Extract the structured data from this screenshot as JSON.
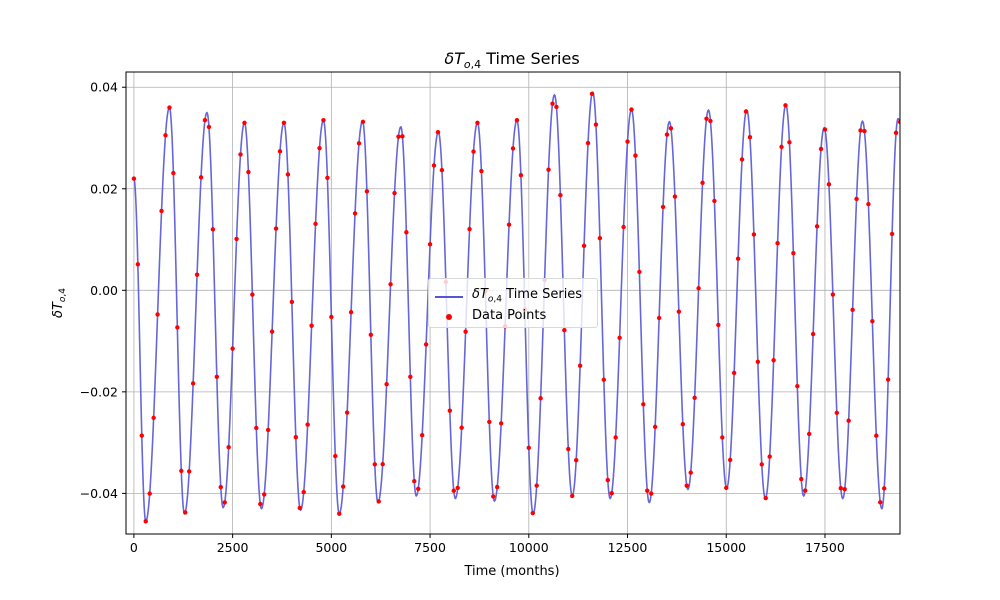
{
  "chart_data": {
    "type": "line",
    "title": "δT_{o,4} Time Series",
    "xlabel": "Time (months)",
    "ylabel": "δT_{o,4}",
    "xlim": [
      -200,
      19400
    ],
    "ylim": [
      -0.048,
      0.043
    ],
    "xticks": [
      0,
      2500,
      5000,
      7500,
      10000,
      12500,
      15000,
      17500
    ],
    "xtick_labels": [
      "0",
      "2500",
      "5000",
      "7500",
      "10000",
      "12500",
      "15000",
      "17500"
    ],
    "yticks": [
      -0.04,
      -0.02,
      0.0,
      0.02,
      0.04
    ],
    "ytick_labels": [
      "−0.04",
      "−0.02",
      "0.00",
      "0.02",
      "0.04"
    ],
    "grid": true,
    "legend_position": "center",
    "period_months": 985,
    "sample_step_months": 100,
    "peaks": [
      {
        "x": 900,
        "y": 0.036
      },
      {
        "x": 1850,
        "y": 0.035
      },
      {
        "x": 2800,
        "y": 0.033
      },
      {
        "x": 3800,
        "y": 0.033
      },
      {
        "x": 4800,
        "y": 0.0335
      },
      {
        "x": 5790,
        "y": 0.0333
      },
      {
        "x": 6760,
        "y": 0.0322
      },
      {
        "x": 7710,
        "y": 0.0312
      },
      {
        "x": 8700,
        "y": 0.033
      },
      {
        "x": 9700,
        "y": 0.0335
      },
      {
        "x": 10650,
        "y": 0.0385
      },
      {
        "x": 11620,
        "y": 0.039
      },
      {
        "x": 12600,
        "y": 0.0356
      },
      {
        "x": 13560,
        "y": 0.0332
      },
      {
        "x": 14550,
        "y": 0.0355
      },
      {
        "x": 15520,
        "y": 0.0355
      },
      {
        "x": 16510,
        "y": 0.0365
      },
      {
        "x": 17480,
        "y": 0.032
      },
      {
        "x": 18450,
        "y": 0.0333
      },
      {
        "x": 19350,
        "y": 0.0338
      }
    ],
    "troughs": [
      {
        "x": 300,
        "y": -0.0455
      },
      {
        "x": 1280,
        "y": -0.044
      },
      {
        "x": 2260,
        "y": -0.0428
      },
      {
        "x": 3230,
        "y": -0.043
      },
      {
        "x": 4220,
        "y": -0.0433
      },
      {
        "x": 5200,
        "y": -0.044
      },
      {
        "x": 6180,
        "y": -0.0418
      },
      {
        "x": 7150,
        "y": -0.0405
      },
      {
        "x": 8140,
        "y": -0.041
      },
      {
        "x": 9130,
        "y": -0.0415
      },
      {
        "x": 10110,
        "y": -0.044
      },
      {
        "x": 11100,
        "y": -0.0405
      },
      {
        "x": 12060,
        "y": -0.041
      },
      {
        "x": 13050,
        "y": -0.0418
      },
      {
        "x": 14030,
        "y": -0.0392
      },
      {
        "x": 15010,
        "y": -0.039
      },
      {
        "x": 15990,
        "y": -0.041
      },
      {
        "x": 16960,
        "y": -0.0405
      },
      {
        "x": 17950,
        "y": -0.041
      },
      {
        "x": 18940,
        "y": -0.043
      }
    ],
    "series": [
      {
        "name": "δT_{o,4} Time Series",
        "kind": "line",
        "color": "#5555d6"
      },
      {
        "name": "Data Points",
        "kind": "markers",
        "color": "#ff0000"
      }
    ]
  },
  "legend": {
    "line_label": "Time Series",
    "points_label": "Data Points"
  }
}
